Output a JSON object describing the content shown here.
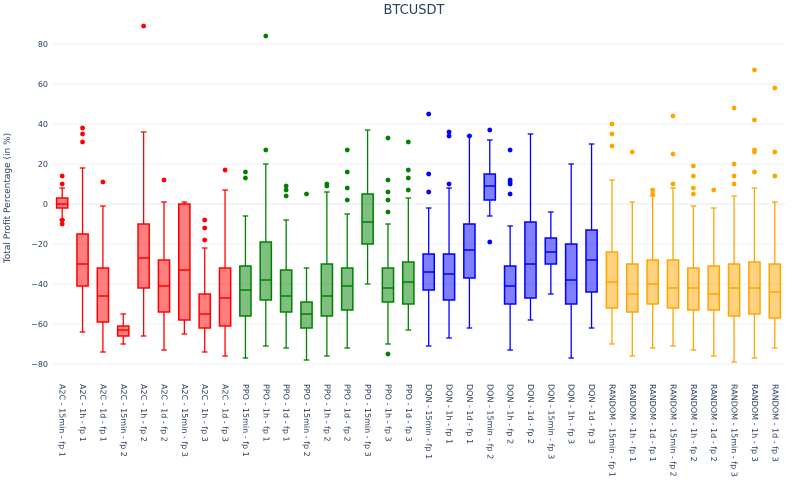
{
  "chart_data": {
    "type": "box",
    "title": "BTCUSDT",
    "ylabel": "Total Profit Percentage (in %)",
    "ylim": [
      -87,
      93
    ],
    "yticks": [
      -80,
      -60,
      -40,
      -20,
      0,
      20,
      40,
      60,
      80
    ],
    "ytick_labels": [
      "−80",
      "−60",
      "−40",
      "−20",
      "0",
      "20",
      "40",
      "60",
      "80"
    ],
    "grid": true,
    "colors": {
      "A2C": "#ff0000",
      "PPO": "#008000",
      "DQN": "#0000ff",
      "RANDOM": "#ffa500"
    },
    "boxes": [
      {
        "label": "A2C - 15min - fp 1",
        "group": "A2C",
        "lower": -8,
        "q1": -2,
        "median": 0,
        "q3": 3,
        "upper": 8,
        "outliers": [
          -10,
          -8,
          10,
          14
        ]
      },
      {
        "label": "A2C - 1h - fp 1",
        "group": "A2C",
        "lower": -64,
        "q1": -41,
        "median": -30,
        "q3": -15,
        "upper": 18,
        "outliers": [
          31,
          35,
          38
        ]
      },
      {
        "label": "A2C - 1d - fp 1",
        "group": "A2C",
        "lower": -74,
        "q1": -59,
        "median": -46,
        "q3": -32,
        "upper": -1,
        "outliers": [
          11
        ]
      },
      {
        "label": "A2C - 15min - fp 2",
        "group": "A2C",
        "lower": -70,
        "q1": -66,
        "median": -63,
        "q3": -61,
        "upper": -55,
        "outliers": []
      },
      {
        "label": "A2C - 1h - fp 2",
        "group": "A2C",
        "lower": -66,
        "q1": -42,
        "median": -27,
        "q3": -10,
        "upper": 36,
        "outliers": [
          89
        ]
      },
      {
        "label": "A2C - 1d - fp 2",
        "group": "A2C",
        "lower": -73,
        "q1": -54,
        "median": -41,
        "q3": -28,
        "upper": 1,
        "outliers": [
          12
        ]
      },
      {
        "label": "A2C - 15min - fp 3",
        "group": "A2C",
        "lower": -65,
        "q1": -58,
        "median": -33,
        "q3": 0,
        "upper": 1,
        "outliers": []
      },
      {
        "label": "A2C - 1h - fp 3",
        "group": "A2C",
        "lower": -74,
        "q1": -62,
        "median": -55,
        "q3": -45,
        "upper": -22,
        "outliers": [
          -18,
          -12,
          -8
        ]
      },
      {
        "label": "A2C - 1d - fp 3",
        "group": "A2C",
        "lower": -76,
        "q1": -61,
        "median": -47,
        "q3": -32,
        "upper": 7,
        "outliers": [
          17
        ]
      },
      {
        "label": "PPO - 15min - fp 1",
        "group": "PPO",
        "lower": -77,
        "q1": -56,
        "median": -43,
        "q3": -31,
        "upper": -6,
        "outliers": [
          13,
          16
        ]
      },
      {
        "label": "PPO - 1h - fp 1",
        "group": "PPO",
        "lower": -71,
        "q1": -48,
        "median": -38,
        "q3": -19,
        "upper": 20,
        "outliers": [
          27,
          84
        ]
      },
      {
        "label": "PPO - 1d - fp 1",
        "group": "PPO",
        "lower": -72,
        "q1": -54,
        "median": -46,
        "q3": -33,
        "upper": -8,
        "outliers": [
          4,
          7,
          9
        ]
      },
      {
        "label": "PPO - 15min - fp 2",
        "group": "PPO",
        "lower": -78,
        "q1": -62,
        "median": -55,
        "q3": -49,
        "upper": -32,
        "outliers": [
          5
        ]
      },
      {
        "label": "PPO - 1h - fp 2",
        "group": "PPO",
        "lower": -76,
        "q1": -56,
        "median": -46,
        "q3": -30,
        "upper": 6,
        "outliers": [
          9,
          10
        ]
      },
      {
        "label": "PPO - 1d - fp 2",
        "group": "PPO",
        "lower": -72,
        "q1": -53,
        "median": -41,
        "q3": -32,
        "upper": -5,
        "outliers": [
          2,
          8,
          16,
          27
        ]
      },
      {
        "label": "PPO - 15min - fp 3",
        "group": "PPO",
        "lower": -40,
        "q1": -20,
        "median": -9,
        "q3": 5,
        "upper": 37,
        "outliers": []
      },
      {
        "label": "PPO - 1h - fp 3",
        "group": "PPO",
        "lower": -70,
        "q1": -49,
        "median": -42,
        "q3": -32,
        "upper": -10,
        "outliers": [
          -75,
          -4,
          2,
          6,
          12,
          33
        ]
      },
      {
        "label": "PPO - 1d - fp 3",
        "group": "PPO",
        "lower": -63,
        "q1": -50,
        "median": -39,
        "q3": -29,
        "upper": 3,
        "outliers": [
          7,
          13,
          17,
          31
        ]
      },
      {
        "label": "DQN - 15min - fp 1",
        "group": "DQN",
        "lower": -71,
        "q1": -43,
        "median": -34,
        "q3": -25,
        "upper": -2,
        "outliers": [
          6,
          15,
          45
        ]
      },
      {
        "label": "DQN - 1h - fp 1",
        "group": "DQN",
        "lower": -67,
        "q1": -48,
        "median": -35,
        "q3": -25,
        "upper": 8,
        "outliers": [
          10,
          34,
          36
        ]
      },
      {
        "label": "DQN - 1d - fp 1",
        "group": "DQN",
        "lower": -62,
        "q1": -37,
        "median": -23,
        "q3": -10,
        "upper": 34,
        "outliers": [
          34
        ]
      },
      {
        "label": "DQN - 15min - fp 2",
        "group": "DQN",
        "lower": -6,
        "q1": 2,
        "median": 9,
        "q3": 15,
        "upper": 32,
        "outliers": [
          -19,
          37
        ]
      },
      {
        "label": "DQN - 1h - fp 2",
        "group": "DQN",
        "lower": -73,
        "q1": -50,
        "median": -41,
        "q3": -31,
        "upper": -11,
        "outliers": [
          5,
          10,
          11,
          12,
          27
        ]
      },
      {
        "label": "DQN - 1d - fp 2",
        "group": "DQN",
        "lower": -58,
        "q1": -47,
        "median": -30,
        "q3": -9,
        "upper": 35,
        "outliers": []
      },
      {
        "label": "DQN - 15min - fp 3",
        "group": "DQN",
        "lower": -45,
        "q1": -30,
        "median": -24,
        "q3": -17,
        "upper": -4,
        "outliers": []
      },
      {
        "label": "DQN - 1h - fp 3",
        "group": "DQN",
        "lower": -77,
        "q1": -50,
        "median": -38,
        "q3": -20,
        "upper": 20,
        "outliers": []
      },
      {
        "label": "DQN - 1d - fp 3",
        "group": "DQN",
        "lower": -62,
        "q1": -44,
        "median": -28,
        "q3": -13,
        "upper": 30,
        "outliers": []
      },
      {
        "label": "RANDOM - 15min - fp 1",
        "group": "RANDOM",
        "lower": -70,
        "q1": -52,
        "median": -39,
        "q3": -24,
        "upper": 12,
        "outliers": [
          29,
          35,
          40
        ]
      },
      {
        "label": "RANDOM - 1h - fp 1",
        "group": "RANDOM",
        "lower": -76,
        "q1": -54,
        "median": -45,
        "q3": -30,
        "upper": 1,
        "outliers": [
          26
        ]
      },
      {
        "label": "RANDOM - 1d - fp 1",
        "group": "RANDOM",
        "lower": -72,
        "q1": -50,
        "median": -40,
        "q3": -28,
        "upper": 4,
        "outliers": [
          5,
          7
        ]
      },
      {
        "label": "RANDOM - 15min - fp 2",
        "group": "RANDOM",
        "lower": -71,
        "q1": -52,
        "median": -42,
        "q3": -28,
        "upper": 8,
        "outliers": [
          10,
          25,
          44
        ]
      },
      {
        "label": "RANDOM - 1h - fp 2",
        "group": "RANDOM",
        "lower": -73,
        "q1": -53,
        "median": -42,
        "q3": -32,
        "upper": -1,
        "outliers": [
          5,
          8,
          14,
          19
        ]
      },
      {
        "label": "RANDOM - 1d - fp 2",
        "group": "RANDOM",
        "lower": -76,
        "q1": -53,
        "median": -45,
        "q3": -31,
        "upper": -2,
        "outliers": [
          7
        ]
      },
      {
        "label": "RANDOM - 15min - fp 3",
        "group": "RANDOM",
        "lower": -79,
        "q1": -56,
        "median": -42,
        "q3": -30,
        "upper": 4,
        "outliers": [
          10,
          14,
          20,
          48
        ]
      },
      {
        "label": "RANDOM - 1h - fp 3",
        "group": "RANDOM",
        "lower": -77,
        "q1": -55,
        "median": -42,
        "q3": -29,
        "upper": 8,
        "outliers": [
          16,
          26,
          27,
          42,
          67
        ]
      },
      {
        "label": "RANDOM - 1d - fp 3",
        "group": "RANDOM",
        "lower": -72,
        "q1": -57,
        "median": -44,
        "q3": -30,
        "upper": 1,
        "outliers": [
          14,
          26,
          58
        ]
      }
    ]
  }
}
